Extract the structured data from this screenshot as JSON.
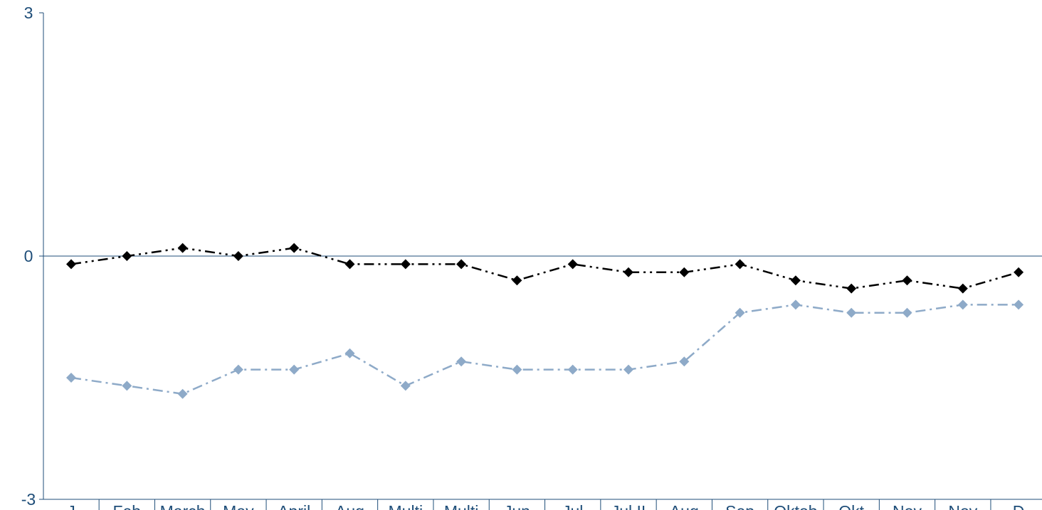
{
  "chart_data": {
    "type": "line",
    "title": "",
    "xlabel": "",
    "ylabel": "",
    "ylim": [
      -3,
      3
    ],
    "yticks": [
      "3",
      "0",
      "-3"
    ],
    "categories": [
      "Jan",
      "Feb",
      "March",
      "May",
      "April",
      "Aug",
      "Multiple",
      "Multiple",
      "Jun",
      "Jul",
      "Jul II",
      "Aug",
      "Sep",
      "Oktober",
      "Okt",
      "Nov",
      "Nov",
      "Dec"
    ],
    "category_labels_visible": [
      "J",
      "Feb",
      "March",
      "May",
      "April",
      "Aug",
      "Multi",
      "Multi",
      "Jun",
      "Jul",
      "Jul II",
      "Aug",
      "Sep",
      "Oktob",
      "Okt",
      "Nov",
      "Nov",
      "D"
    ],
    "grid": false,
    "legend": "none",
    "series": [
      {
        "color": "#000000",
        "values": [
          -0.1,
          0.0,
          0.1,
          0.0,
          0.1,
          -0.1,
          -0.1,
          -0.1,
          -0.3,
          -0.1,
          -0.2,
          -0.2,
          -0.1,
          -0.3,
          -0.4,
          -0.3,
          -0.4,
          -0.2
        ]
      },
      {
        "color": "#8eaac8",
        "values": [
          -1.5,
          -1.6,
          -1.7,
          -1.4,
          -1.4,
          -1.2,
          -1.6,
          -1.3,
          -1.4,
          -1.4,
          -1.4,
          -1.3,
          -0.7,
          -0.6,
          -0.7,
          -0.7,
          -0.6,
          -0.6
        ]
      }
    ]
  }
}
